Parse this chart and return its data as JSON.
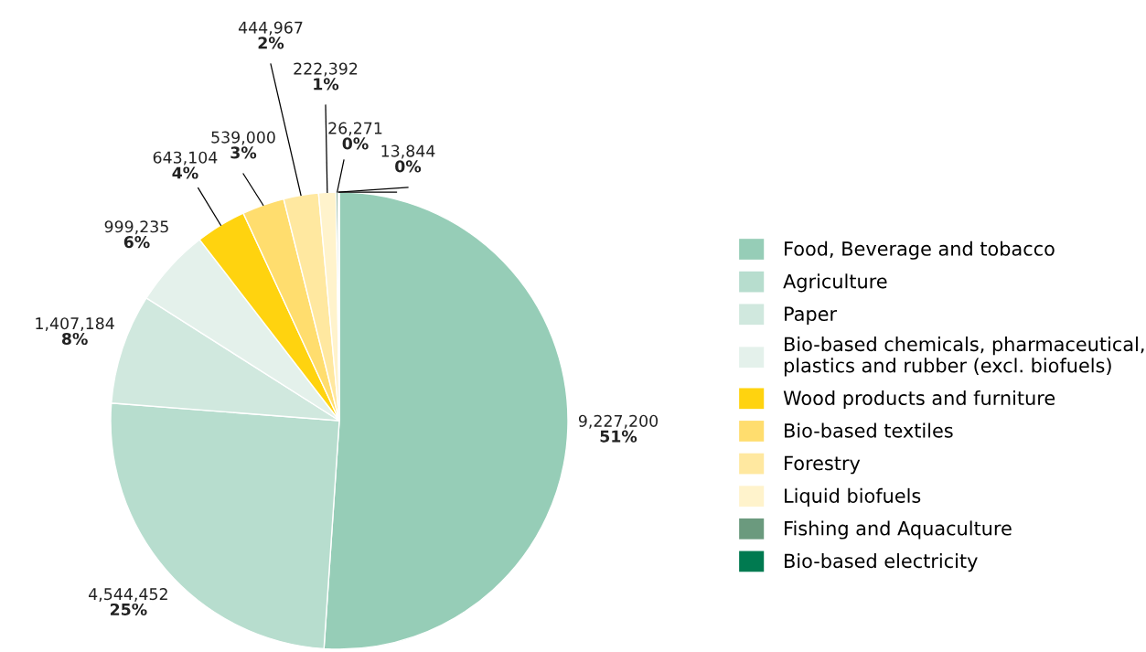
{
  "chart_data": {
    "type": "pie",
    "categories": [
      "Food, Beverage and tobacco",
      "Agriculture",
      "Paper",
      "Bio-based chemicals, pharmaceutical,\nplastics and rubber (excl. biofuels)",
      "Wood products and furniture",
      "Bio-based textiles",
      "Forestry",
      "Liquid biofuels",
      "Fishing and Aquaculture",
      "Bio-based electricity"
    ],
    "values": [
      9227200,
      4544452,
      1407184,
      999235,
      643104,
      539000,
      444967,
      222392,
      26271,
      13844
    ],
    "value_labels": [
      "9,227,200\n51%",
      "4,544,452\n25%",
      "1,407,184\n8%",
      "999,235\n6%",
      "643,104\n4%",
      "539,000\n3%",
      "444,967\n2%",
      "222,392\n1%",
      "26,271\n0%",
      "13,844\n0%"
    ],
    "colors": [
      "#96cdb7",
      "#b7ddce",
      "#d0e8de",
      "#e4f1eb",
      "#ffd30f",
      "#ffdd6e",
      "#ffe8a0",
      "#fff3cc",
      "#6b9a7e",
      "#007a50"
    ],
    "legend": "right"
  }
}
